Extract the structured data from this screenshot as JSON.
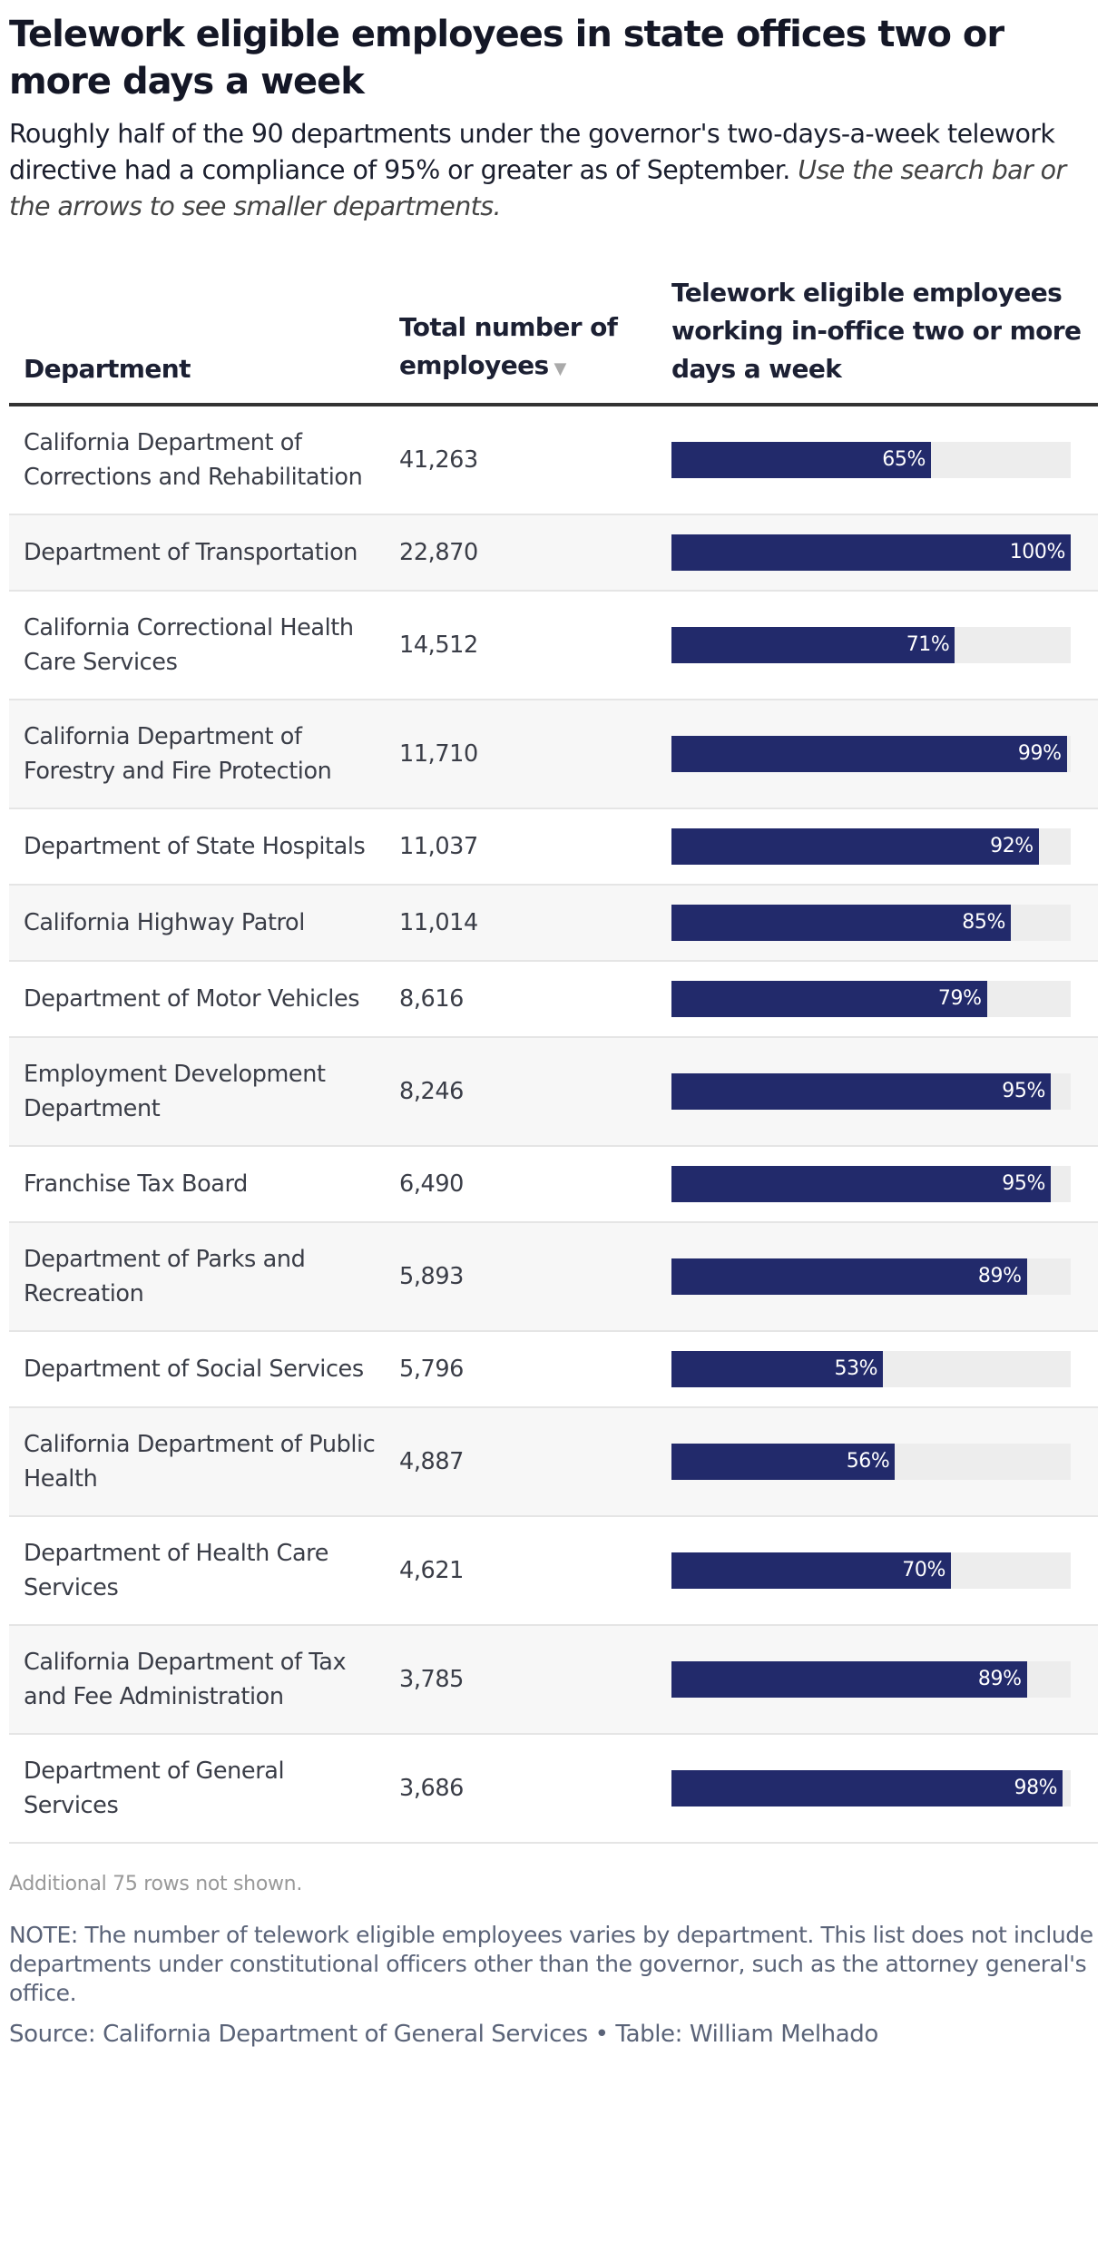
{
  "title": "Telework eligible employees in state offices two or more days a week",
  "subtitle": "Roughly half of the 90 departments under the governor's two-days-a-week telework directive had a compliance of 95% or greater as of September.",
  "subtitle_italic": "Use the search bar or the arrows to see smaller departments.",
  "chart_data": {
    "type": "table",
    "columns": [
      "Department",
      "Total number of employees",
      "Telework eligible employees working in-office two or more days a week"
    ],
    "sort": {
      "column": "Total number of employees",
      "direction": "descending"
    },
    "bar_color": "#222a6b",
    "track_color": "#ededed",
    "rows": [
      {
        "department": "California Department of Corrections and Rehabilitation",
        "employees": "41,263",
        "pct": 65,
        "pct_label": "65%"
      },
      {
        "department": "Department of Transportation",
        "employees": "22,870",
        "pct": 100,
        "pct_label": "100%"
      },
      {
        "department": "California Correctional Health Care Services",
        "employees": "14,512",
        "pct": 71,
        "pct_label": "71%"
      },
      {
        "department": "California Department of Forestry and Fire Protection",
        "employees": "11,710",
        "pct": 99,
        "pct_label": "99%"
      },
      {
        "department": "Department of State Hospitals",
        "employees": "11,037",
        "pct": 92,
        "pct_label": "92%"
      },
      {
        "department": "California Highway Patrol",
        "employees": "11,014",
        "pct": 85,
        "pct_label": "85%"
      },
      {
        "department": "Department of Motor Vehicles",
        "employees": "8,616",
        "pct": 79,
        "pct_label": "79%"
      },
      {
        "department": "Employment Development Department",
        "employees": "8,246",
        "pct": 95,
        "pct_label": "95%"
      },
      {
        "department": "Franchise Tax Board",
        "employees": "6,490",
        "pct": 95,
        "pct_label": "95%"
      },
      {
        "department": "Department of Parks and Recreation",
        "employees": "5,893",
        "pct": 89,
        "pct_label": "89%"
      },
      {
        "department": "Department of Social Services",
        "employees": "5,796",
        "pct": 53,
        "pct_label": "53%"
      },
      {
        "department": "California Department of Public Health",
        "employees": "4,887",
        "pct": 56,
        "pct_label": "56%"
      },
      {
        "department": "Department of Health Care Services",
        "employees": "4,621",
        "pct": 70,
        "pct_label": "70%"
      },
      {
        "department": "California Department of Tax and Fee Administration",
        "employees": "3,785",
        "pct": 89,
        "pct_label": "89%"
      },
      {
        "department": "Department of General Services",
        "employees": "3,686",
        "pct": 98,
        "pct_label": "98%"
      }
    ]
  },
  "more_rows": "Additional 75 rows not shown.",
  "note": "NOTE: The number of telework eligible employees varies by department. This list does not include departments under constitutional officers other than the governor, such as the attorney general's office.",
  "source": "Source: California Department of General Services • Table: William Melhado",
  "sort_icon": "triangle-down-icon"
}
